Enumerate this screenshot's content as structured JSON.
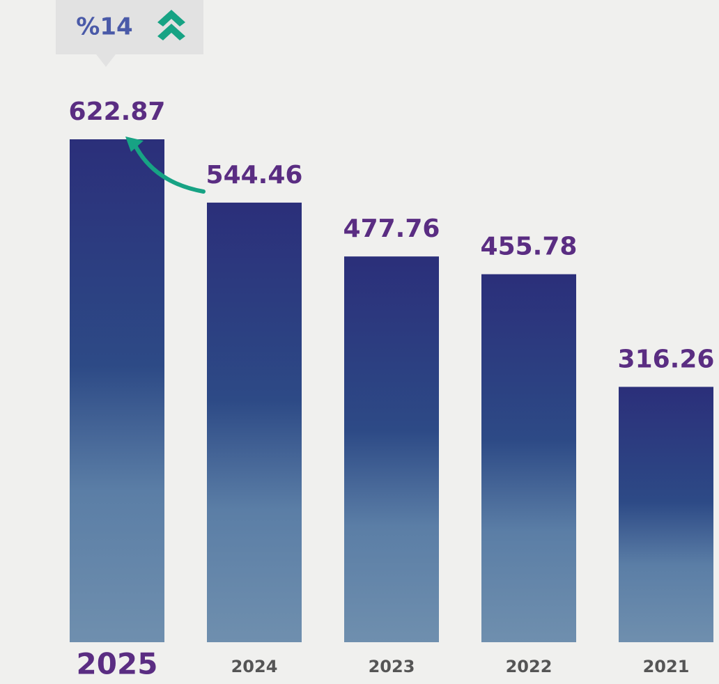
{
  "chart_data": {
    "type": "bar",
    "annotation": "%14",
    "categories": [
      "2025",
      "2024",
      "2023",
      "2022",
      "2021"
    ],
    "values": [
      622.87,
      544.46,
      477.76,
      455.78,
      316.26
    ],
    "color": "#2b2f7a"
  }
}
